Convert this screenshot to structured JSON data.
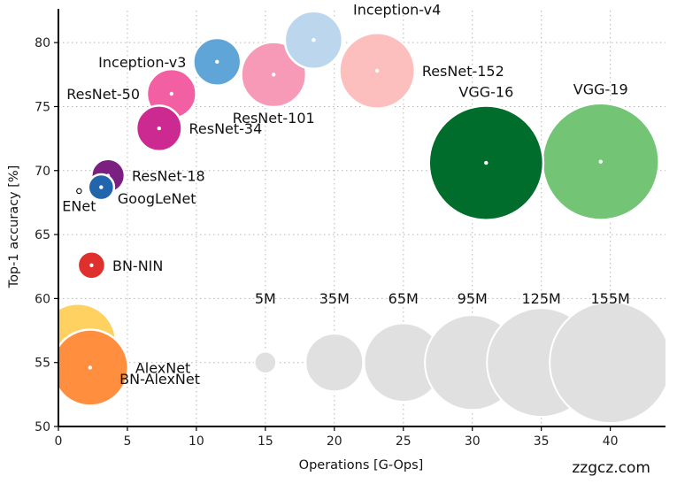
{
  "chart_data": {
    "type": "scatter",
    "title": "",
    "xlabel": "Operations [G-Ops]",
    "ylabel": "Top-1 accuracy [%]",
    "xlim": [
      0,
      44
    ],
    "ylim": [
      50,
      82.5
    ],
    "xticks": [
      0,
      5,
      10,
      15,
      20,
      25,
      30,
      35,
      40
    ],
    "yticks": [
      50,
      55,
      60,
      65,
      70,
      75,
      80
    ],
    "grid": true,
    "size_legend": {
      "y": 55,
      "color": "#e0e0e0",
      "entries": [
        {
          "label": "5M",
          "x": 15,
          "params_m": 5
        },
        {
          "label": "35M",
          "x": 20,
          "params_m": 35
        },
        {
          "label": "65M",
          "x": 25,
          "params_m": 65
        },
        {
          "label": "95M",
          "x": 30,
          "params_m": 95
        },
        {
          "label": "125M",
          "x": 35,
          "params_m": 125
        },
        {
          "label": "155M",
          "x": 40,
          "params_m": 155
        }
      ]
    },
    "points": [
      {
        "name": "BN-AlexNet",
        "x": 1.4,
        "y": 56.6,
        "params_m": 62,
        "color": "#ffd160",
        "label_anchor": "right-below"
      },
      {
        "name": "AlexNet",
        "x": 2.3,
        "y": 54.6,
        "params_m": 61,
        "color": "#ff8f3e",
        "label_anchor": "right"
      },
      {
        "name": "BN-NIN",
        "x": 2.4,
        "y": 62.6,
        "params_m": 8,
        "color": "#e0302d",
        "label_anchor": "right"
      },
      {
        "name": "ENet",
        "x": 1.5,
        "y": 68.4,
        "params_m": 0.4,
        "color": "#000000",
        "label_anchor": "below"
      },
      {
        "name": "GoogLeNet",
        "x": 3.1,
        "y": 68.7,
        "params_m": 7,
        "color": "#2166ac",
        "label_anchor": "right-below"
      },
      {
        "name": "ResNet-18",
        "x": 3.6,
        "y": 69.6,
        "params_m": 11.7,
        "color": "#7b1f80",
        "label_anchor": "right"
      },
      {
        "name": "ResNet-34",
        "x": 7.3,
        "y": 73.3,
        "params_m": 21.8,
        "color": "#cc2a90",
        "label_anchor": "right"
      },
      {
        "name": "ResNet-50",
        "x": 8.2,
        "y": 76.0,
        "params_m": 25.6,
        "color": "#f25fa2",
        "label_anchor": "left"
      },
      {
        "name": "Inception-v3",
        "x": 11.5,
        "y": 78.5,
        "params_m": 23.8,
        "color": "#5fa5d8",
        "label_anchor": "left"
      },
      {
        "name": "ResNet-101",
        "x": 15.6,
        "y": 77.5,
        "params_m": 44.5,
        "color": "#f79ab8",
        "label_anchor": "below"
      },
      {
        "name": "Inception-v4",
        "x": 18.5,
        "y": 80.2,
        "params_m": 35,
        "color": "#bcd6ee",
        "label_anchor": "right-above"
      },
      {
        "name": "ResNet-152",
        "x": 23.1,
        "y": 77.8,
        "params_m": 60.2,
        "color": "#fcbfbd",
        "label_anchor": "right"
      },
      {
        "name": "VGG-16",
        "x": 31.0,
        "y": 70.6,
        "params_m": 138,
        "color": "#006d2c",
        "label_anchor": "above"
      },
      {
        "name": "VGG-19",
        "x": 39.3,
        "y": 70.7,
        "params_m": 143.7,
        "color": "#74c476",
        "label_anchor": "above"
      }
    ]
  },
  "watermark": "zzgcz.com"
}
